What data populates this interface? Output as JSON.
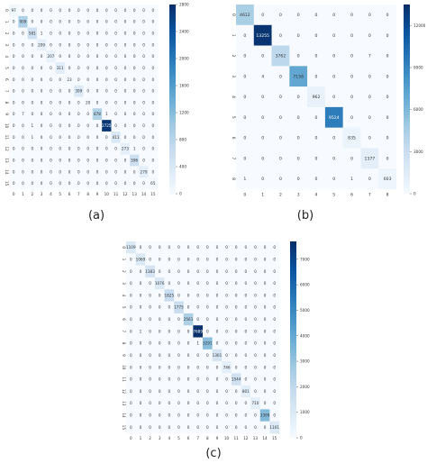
{
  "captions": {
    "a": "(a)",
    "b": "(b)",
    "c": "(c)"
  },
  "colors": {
    "low": "#f7fbff",
    "high": "#08306b",
    "text_dark": "#333333",
    "text_light": "#ffffff"
  },
  "chart_data": [
    {
      "type": "heatmap",
      "id": "a",
      "caption": "(a)",
      "x_ticks": [
        "0",
        "1",
        "2",
        "3",
        "4",
        "5",
        "6",
        "7",
        "8",
        "9",
        "10",
        "11",
        "12",
        "13",
        "14",
        "15"
      ],
      "y_ticks": [
        "0",
        "1",
        "2",
        "3",
        "4",
        "5",
        "6",
        "7",
        "8",
        "9",
        "10",
        "11",
        "12",
        "13",
        "14",
        "15"
      ],
      "diagonal": [
        97,
        909,
        581,
        209,
        207,
        311,
        23,
        399,
        20,
        878,
        2725,
        411,
        273,
        596,
        279,
        65
      ],
      "off_diagonal": [
        {
          "row": 2,
          "col": 3,
          "value": 1
        },
        {
          "row": 9,
          "col": 1,
          "value": 7
        },
        {
          "row": 9,
          "col": 10,
          "value": 1
        },
        {
          "row": 10,
          "col": 2,
          "value": 1
        },
        {
          "row": 11,
          "col": 2,
          "value": 1
        },
        {
          "row": 12,
          "col": 13,
          "value": 1
        }
      ],
      "colorbar_ticks": [
        0,
        400,
        800,
        1200,
        1600,
        2000,
        2400,
        2800
      ],
      "colorbar_labels": [
        "0",
        "400",
        "800",
        "1200",
        "1600",
        "2000",
        "2400",
        "2800"
      ],
      "vmax": 2800
    },
    {
      "type": "heatmap",
      "id": "b",
      "caption": "(b)",
      "x_ticks": [
        "0",
        "1",
        "2",
        "3",
        "4",
        "5",
        "6",
        "7",
        "8"
      ],
      "y_ticks": [
        "0",
        "1",
        "2",
        "3",
        "4",
        "5",
        "6",
        "7",
        "8"
      ],
      "diagonal": [
        4612,
        13255,
        3762,
        7158,
        962,
        9524,
        835,
        1377,
        603
      ],
      "off_diagonal": [
        {
          "row": 2,
          "col": 7,
          "value": 7
        },
        {
          "row": 3,
          "col": 1,
          "value": 4
        },
        {
          "row": 8,
          "col": 0,
          "value": 1
        },
        {
          "row": 8,
          "col": 6,
          "value": 1
        }
      ],
      "colorbar_ticks": [
        0,
        3000,
        6000,
        9000,
        12000
      ],
      "colorbar_labels": [
        "0",
        "3000",
        "6000",
        "9000",
        "12000"
      ],
      "vmax": 13500
    },
    {
      "type": "heatmap",
      "id": "c",
      "caption": "(c)",
      "x_ticks": [
        "0",
        "1",
        "2",
        "3",
        "4",
        "5",
        "6",
        "7",
        "8",
        "9",
        "10",
        "11",
        "12",
        "13",
        "14",
        "15"
      ],
      "y_ticks": [
        "0",
        "1",
        "2",
        "3",
        "4",
        "5",
        "6",
        "7",
        "8",
        "9",
        "10",
        "11",
        "12",
        "13",
        "14",
        "15"
      ],
      "diagonal": [
        1109,
        1069,
        1383,
        1076,
        1825,
        1775,
        2561,
        7689,
        3291,
        1301,
        746,
        1544,
        801,
        710,
        3399,
        1101
      ],
      "off_diagonal": [
        {
          "row": 7,
          "col": 1,
          "value": 1
        },
        {
          "row": 8,
          "col": 7,
          "value": 1
        }
      ],
      "colorbar_ticks": [
        0,
        1000,
        2000,
        3000,
        4000,
        5000,
        6000,
        7000
      ],
      "colorbar_labels": [
        "0",
        "1000",
        "2000",
        "3000",
        "4000",
        "5000",
        "6000",
        "7000"
      ],
      "vmax": 7700
    }
  ]
}
